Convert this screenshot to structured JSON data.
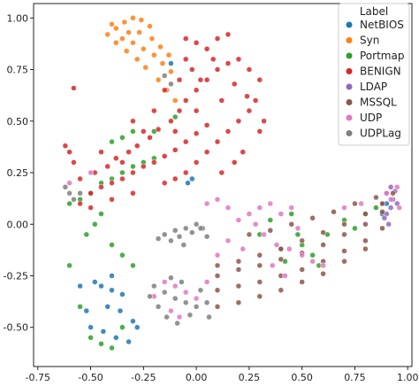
{
  "chart_data": {
    "type": "scatter",
    "title": "",
    "xlabel": "",
    "ylabel": "",
    "xlim": [
      -0.77,
      1.02
    ],
    "ylim": [
      -0.69,
      1.07
    ],
    "xticks": [
      "-0.75",
      "-0.50",
      "-0.25",
      "0.00",
      "0.25",
      "0.50",
      "0.75",
      "1.00"
    ],
    "yticks": [
      "1.00",
      "0.75",
      "0.50",
      "0.25",
      "0.00",
      "-0.25",
      "-0.50"
    ],
    "xtick_values": [
      -0.75,
      -0.5,
      -0.25,
      0.0,
      0.25,
      0.5,
      0.75,
      1.0
    ],
    "ytick_values": [
      1.0,
      0.75,
      0.5,
      0.25,
      0.0,
      -0.25,
      -0.5
    ],
    "grid": false,
    "legend": {
      "title": "Label",
      "placement": "top-right"
    },
    "series": [
      {
        "name": "NetBIOS",
        "color": "#1f77b4",
        "points": [
          [
            -0.45,
            -0.3
          ],
          [
            -0.4,
            -0.32
          ],
          [
            -0.35,
            -0.34
          ],
          [
            -0.48,
            -0.28
          ],
          [
            -0.42,
            -0.4
          ],
          [
            -0.36,
            -0.42
          ],
          [
            -0.3,
            -0.47
          ],
          [
            -0.5,
            -0.5
          ],
          [
            -0.44,
            -0.52
          ],
          [
            -0.38,
            -0.55
          ],
          [
            -0.32,
            -0.57
          ],
          [
            -0.55,
            -0.3
          ],
          [
            -0.02,
            0.22
          ],
          [
            -0.04,
            0.2
          ],
          [
            -0.12,
            0.78
          ],
          [
            0.9,
            0.1
          ],
          [
            0.88,
            0.05
          ],
          [
            -0.4,
            -0.25
          ],
          [
            -0.28,
            -0.5
          ],
          [
            -0.52,
            -0.42
          ]
        ]
      },
      {
        "name": "Syn",
        "color": "#ff7f0e",
        "points": [
          [
            -0.42,
            0.92
          ],
          [
            -0.38,
            0.95
          ],
          [
            -0.34,
            0.98
          ],
          [
            -0.3,
            1.0
          ],
          [
            -0.26,
            0.99
          ],
          [
            -0.22,
            0.96
          ],
          [
            -0.35,
            0.9
          ],
          [
            -0.3,
            0.88
          ],
          [
            -0.25,
            0.85
          ],
          [
            -0.2,
            0.82
          ],
          [
            -0.16,
            0.78
          ],
          [
            -0.12,
            0.74
          ],
          [
            -0.28,
            0.8
          ],
          [
            -0.24,
            0.76
          ],
          [
            -0.18,
            0.7
          ],
          [
            -0.14,
            0.65
          ],
          [
            -0.1,
            0.6
          ],
          [
            -0.32,
            0.93
          ],
          [
            -0.38,
            0.88
          ],
          [
            -0.27,
            0.93
          ],
          [
            -0.21,
            0.9
          ],
          [
            -0.17,
            0.86
          ],
          [
            -0.13,
            0.82
          ],
          [
            -0.4,
            0.97
          ],
          [
            -0.33,
            0.84
          ]
        ]
      },
      {
        "name": "Portmap",
        "color": "#2ca02c",
        "points": [
          [
            -0.6,
            0.1
          ],
          [
            -0.55,
            0.12
          ],
          [
            -0.5,
            0.15
          ],
          [
            -0.45,
            0.2
          ],
          [
            -0.4,
            0.22
          ],
          [
            -0.35,
            0.25
          ],
          [
            -0.3,
            0.28
          ],
          [
            -0.25,
            0.3
          ],
          [
            -0.2,
            0.32
          ],
          [
            -0.4,
            0.4
          ],
          [
            -0.35,
            0.42
          ],
          [
            -0.3,
            0.45
          ],
          [
            -0.5,
            -0.55
          ],
          [
            -0.45,
            -0.58
          ],
          [
            -0.4,
            -0.6
          ],
          [
            -0.35,
            -0.5
          ],
          [
            -0.55,
            -0.4
          ],
          [
            -0.3,
            -0.2
          ],
          [
            -0.35,
            -0.15
          ],
          [
            -0.4,
            -0.1
          ],
          [
            0.4,
            -0.12
          ],
          [
            0.42,
            -0.18
          ],
          [
            0.48,
            -0.05
          ],
          [
            0.5,
            -0.1
          ],
          [
            0.55,
            -0.15
          ],
          [
            0.58,
            -0.2
          ],
          [
            0.62,
            -0.05
          ],
          [
            0.7,
            0.02
          ],
          [
            0.75,
            -0.02
          ],
          [
            0.8,
            0.05
          ],
          [
            0.85,
            0.08
          ],
          [
            0.35,
            0.02
          ],
          [
            0.3,
            -0.05
          ],
          [
            0.45,
            0.05
          ],
          [
            -0.45,
            0.05
          ],
          [
            -0.48,
            0.0
          ],
          [
            -0.52,
            -0.05
          ],
          [
            -0.6,
            -0.2
          ],
          [
            -0.2,
            0.45
          ],
          [
            -0.1,
            0.52
          ]
        ]
      },
      {
        "name": "BENIGN",
        "color": "#d62728",
        "points": [
          [
            -0.5,
            0.15
          ],
          [
            -0.45,
            0.18
          ],
          [
            -0.4,
            0.2
          ],
          [
            -0.35,
            0.22
          ],
          [
            -0.3,
            0.25
          ],
          [
            -0.25,
            0.28
          ],
          [
            -0.2,
            0.3
          ],
          [
            -0.15,
            0.33
          ],
          [
            -0.1,
            0.36
          ],
          [
            -0.05,
            0.4
          ],
          [
            0.0,
            0.44
          ],
          [
            0.05,
            0.48
          ],
          [
            -0.48,
            0.25
          ],
          [
            -0.42,
            0.28
          ],
          [
            -0.38,
            0.32
          ],
          [
            -0.32,
            0.35
          ],
          [
            -0.28,
            0.38
          ],
          [
            -0.22,
            0.42
          ],
          [
            -0.18,
            0.46
          ],
          [
            -0.12,
            0.5
          ],
          [
            -0.08,
            0.55
          ],
          [
            -0.05,
            0.6
          ],
          [
            0.0,
            0.65
          ],
          [
            0.05,
            0.7
          ],
          [
            0.1,
            0.75
          ],
          [
            0.15,
            0.78
          ],
          [
            0.2,
            0.8
          ],
          [
            0.25,
            0.75
          ],
          [
            0.3,
            0.7
          ],
          [
            0.28,
            0.6
          ],
          [
            0.25,
            0.55
          ],
          [
            0.2,
            0.5
          ],
          [
            0.15,
            0.45
          ],
          [
            0.1,
            0.4
          ],
          [
            0.05,
            0.35
          ],
          [
            0.0,
            0.3
          ],
          [
            -0.05,
            0.25
          ],
          [
            -0.1,
            0.22
          ],
          [
            -0.15,
            0.2
          ],
          [
            -0.3,
            0.15
          ],
          [
            -0.4,
            0.12
          ],
          [
            -0.55,
            0.22
          ],
          [
            -0.58,
            0.3
          ],
          [
            -0.05,
            0.9
          ],
          [
            0.0,
            0.88
          ],
          [
            0.05,
            0.85
          ],
          [
            0.1,
            0.9
          ],
          [
            0.15,
            0.92
          ],
          [
            0.08,
            0.8
          ],
          [
            -0.02,
            0.75
          ],
          [
            -0.08,
            0.7
          ],
          [
            -0.15,
            0.65
          ],
          [
            0.22,
            0.35
          ],
          [
            0.18,
            0.3
          ],
          [
            0.12,
            0.25
          ],
          [
            -0.25,
            0.45
          ],
          [
            -0.2,
            0.55
          ],
          [
            -0.1,
            0.45
          ],
          [
            0.0,
            0.55
          ],
          [
            0.12,
            0.6
          ],
          [
            -0.35,
            0.3
          ],
          [
            -0.45,
            0.35
          ],
          [
            -0.5,
            0.08
          ],
          [
            -0.55,
            0.1
          ],
          [
            -0.3,
            0.5
          ],
          [
            -0.6,
            0.35
          ],
          [
            -0.62,
            0.38
          ],
          [
            -0.58,
            0.66
          ],
          [
            0.3,
            0.45
          ],
          [
            0.32,
            0.5
          ],
          [
            0.18,
            0.68
          ],
          [
            0.24,
            0.62
          ],
          [
            -0.05,
            0.8
          ],
          [
            0.02,
            0.7
          ]
        ]
      },
      {
        "name": "LDAP",
        "color": "#9467bd",
        "points": [
          [
            0.9,
            0.05
          ],
          [
            0.92,
            0.08
          ],
          [
            0.93,
            0.12
          ],
          [
            0.94,
            0.16
          ],
          [
            0.92,
            0.18
          ],
          [
            0.9,
            0.15
          ],
          [
            0.88,
            0.1
          ],
          [
            0.91,
            0.0
          ],
          [
            0.89,
            0.03
          ],
          [
            0.95,
            0.1
          ]
        ]
      },
      {
        "name": "MSSQL",
        "color": "#8c564b",
        "points": [
          [
            0.1,
            -0.2
          ],
          [
            0.2,
            -0.18
          ],
          [
            0.3,
            -0.15
          ],
          [
            0.4,
            -0.12
          ],
          [
            0.5,
            -0.08
          ],
          [
            0.6,
            -0.04
          ],
          [
            0.7,
            0.0
          ],
          [
            0.8,
            0.05
          ],
          [
            0.88,
            0.1
          ],
          [
            0.1,
            -0.25
          ],
          [
            0.2,
            -0.22
          ],
          [
            0.3,
            -0.2
          ],
          [
            0.4,
            -0.17
          ],
          [
            0.5,
            -0.14
          ],
          [
            0.6,
            -0.1
          ],
          [
            0.7,
            -0.05
          ],
          [
            0.8,
            0.0
          ],
          [
            0.88,
            0.06
          ],
          [
            0.1,
            -0.32
          ],
          [
            0.2,
            -0.3
          ],
          [
            0.3,
            -0.28
          ],
          [
            0.4,
            -0.25
          ],
          [
            0.5,
            -0.22
          ],
          [
            0.6,
            -0.18
          ],
          [
            0.7,
            -0.13
          ],
          [
            0.8,
            -0.08
          ],
          [
            0.88,
            -0.02
          ],
          [
            0.1,
            -0.4
          ],
          [
            0.2,
            -0.38
          ],
          [
            0.3,
            -0.35
          ],
          [
            0.4,
            -0.32
          ],
          [
            0.5,
            -0.28
          ],
          [
            0.6,
            -0.24
          ],
          [
            0.7,
            -0.18
          ],
          [
            0.8,
            -0.12
          ],
          [
            0.25,
            -0.05
          ],
          [
            0.35,
            -0.03
          ],
          [
            0.45,
            0.0
          ],
          [
            0.55,
            0.03
          ],
          [
            0.65,
            0.06
          ],
          [
            0.75,
            0.1
          ],
          [
            0.85,
            0.13
          ],
          [
            0.93,
            0.15
          ]
        ]
      },
      {
        "name": "UDP",
        "color": "#e377c2",
        "points": [
          [
            0.2,
            0.02
          ],
          [
            0.25,
            0.05
          ],
          [
            0.3,
            0.08
          ],
          [
            0.35,
            0.1
          ],
          [
            0.28,
            0.0
          ],
          [
            0.32,
            -0.05
          ],
          [
            0.38,
            -0.1
          ],
          [
            0.44,
            -0.12
          ],
          [
            0.5,
            -0.15
          ],
          [
            0.55,
            -0.18
          ],
          [
            0.6,
            -0.2
          ],
          [
            0.05,
            0.1
          ],
          [
            0.1,
            0.12
          ],
          [
            0.15,
            0.08
          ],
          [
            -0.1,
            -0.3
          ],
          [
            -0.05,
            -0.33
          ],
          [
            0.0,
            -0.36
          ],
          [
            -0.15,
            -0.28
          ],
          [
            -0.2,
            -0.35
          ],
          [
            -0.12,
            -0.42
          ],
          [
            -0.08,
            -0.45
          ],
          [
            0.05,
            -0.28
          ],
          [
            0.1,
            -0.15
          ],
          [
            0.4,
            0.05
          ],
          [
            0.45,
            0.08
          ],
          [
            0.48,
            -0.02
          ],
          [
            0.36,
            -0.2
          ],
          [
            0.42,
            -0.25
          ],
          [
            0.7,
            0.08
          ],
          [
            0.78,
            0.1
          ],
          [
            0.92,
            0.12
          ],
          [
            0.95,
            0.18
          ],
          [
            0.96,
            0.08
          ],
          [
            0.9,
            0.15
          ],
          [
            -0.5,
            0.25
          ],
          [
            -0.6,
            0.2
          ],
          [
            0.15,
            -0.08
          ],
          [
            0.22,
            -0.12
          ]
        ]
      },
      {
        "name": "UDPLag",
        "color": "#7f7f7f",
        "points": [
          [
            -0.15,
            -0.05
          ],
          [
            -0.1,
            -0.03
          ],
          [
            -0.05,
            -0.02
          ],
          [
            0.0,
            0.0
          ],
          [
            -0.12,
            -0.08
          ],
          [
            -0.08,
            -0.06
          ],
          [
            -0.02,
            -0.04
          ],
          [
            0.03,
            -0.02
          ],
          [
            -0.18,
            -0.07
          ],
          [
            -0.2,
            -0.3
          ],
          [
            -0.15,
            -0.33
          ],
          [
            -0.1,
            -0.36
          ],
          [
            -0.05,
            -0.38
          ],
          [
            0.0,
            -0.4
          ],
          [
            0.05,
            -0.38
          ],
          [
            -0.18,
            -0.4
          ],
          [
            -0.14,
            -0.45
          ],
          [
            -0.09,
            -0.48
          ],
          [
            -0.03,
            -0.44
          ],
          [
            0.02,
            -0.32
          ],
          [
            -0.07,
            -0.28
          ],
          [
            -0.12,
            -0.26
          ],
          [
            -0.6,
            0.15
          ],
          [
            -0.58,
            0.12
          ],
          [
            -0.55,
            0.15
          ],
          [
            -0.62,
            0.18
          ],
          [
            -0.15,
            0.72
          ],
          [
            -0.12,
            0.68
          ],
          [
            0.02,
            -0.02
          ],
          [
            -0.06,
            -0.1
          ],
          [
            0.05,
            -0.06
          ],
          [
            -0.22,
            -0.35
          ],
          [
            0.06,
            -0.45
          ]
        ]
      }
    ]
  }
}
